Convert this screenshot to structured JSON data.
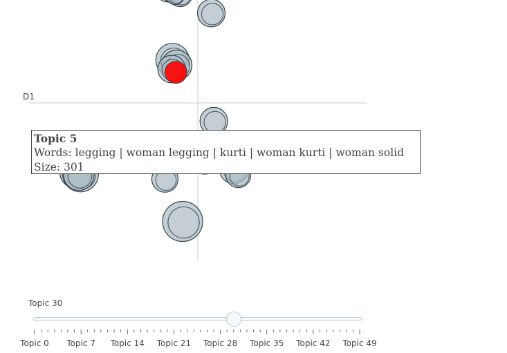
{
  "chart_data": {
    "type": "scatter",
    "title": "",
    "axis_label": "D1",
    "bubbles": [
      {
        "x": -1.8,
        "y": 8.6,
        "r": 16
      },
      {
        "x": -1.55,
        "y": 8.45,
        "r": 14
      },
      {
        "x": -1.05,
        "y": 8.35,
        "r": 18
      },
      {
        "x": -1.35,
        "y": 8.3,
        "r": 14
      },
      {
        "x": 0.8,
        "y": 6.9,
        "r": 20
      },
      {
        "x": -1.5,
        "y": 3.3,
        "r": 24
      },
      {
        "x": -1.25,
        "y": 2.9,
        "r": 22
      },
      {
        "x": -1.55,
        "y": 2.6,
        "r": 20
      },
      {
        "x": 0.95,
        "y": -1.4,
        "r": 20
      },
      {
        "x": 0.4,
        "y": -4.3,
        "r": 22
      },
      {
        "x": -7.2,
        "y": -5.3,
        "r": 24
      },
      {
        "x": -6.95,
        "y": -5.45,
        "r": 26
      },
      {
        "x": -7.05,
        "y": -5.55,
        "r": 22
      },
      {
        "x": -1.95,
        "y": -5.85,
        "r": 19
      },
      {
        "x": 2.15,
        "y": -5.1,
        "r": 21
      },
      {
        "x": 2.4,
        "y": -5.55,
        "r": 18
      },
      {
        "x": -0.9,
        "y": -9.1,
        "r": 29
      }
    ],
    "highlight": {
      "x": -1.3,
      "y": 2.35,
      "r": 16,
      "color": "#ff0000"
    },
    "colors": {
      "fill": "#b0bec5",
      "stroke": "#37474f",
      "highlight": "#ff0000",
      "axis": "#cccccc"
    }
  },
  "tooltip": {
    "title": "Topic 5",
    "words": "Words: legging | woman legging | kurti | woman kurti | woman solid",
    "size": "Size: 301"
  },
  "slider": {
    "current_label": "Topic 30",
    "value": 30,
    "min": 0,
    "max": 49,
    "tick_labels": [
      "Topic 0",
      "Topic 7",
      "Topic 14",
      "Topic 21",
      "Topic 28",
      "Topic 35",
      "Topic 42",
      "Topic 49"
    ]
  }
}
